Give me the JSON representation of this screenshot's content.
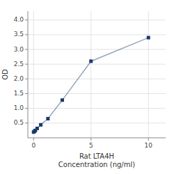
{
  "chart_data": {
    "type": "line",
    "x": [
      0.0,
      0.078,
      0.156,
      0.313,
      0.625,
      1.25,
      2.5,
      5.0,
      10.0
    ],
    "values": [
      0.195,
      0.22,
      0.25,
      0.32,
      0.44,
      0.65,
      1.28,
      2.6,
      3.4
    ],
    "color": "#1a3a6b",
    "marker": "square",
    "xlabel": "Rat LTA4H\nConcentration (ng/ml)",
    "ylabel": "OD",
    "xlim": [
      -0.5,
      11.5
    ],
    "ylim": [
      0.0,
      4.3
    ],
    "xticks": [
      0,
      5,
      10
    ],
    "yticks": [
      0.5,
      {
        "value": 1.0,
        "label": "1.0"
      },
      1.5,
      {
        "value": 2.0,
        "label": "2.0"
      },
      2.5,
      {
        "value": 3.0,
        "label": "3.0"
      },
      3.5,
      {
        "value": 4.0,
        "label": "4.0"
      }
    ],
    "grid": true
  }
}
